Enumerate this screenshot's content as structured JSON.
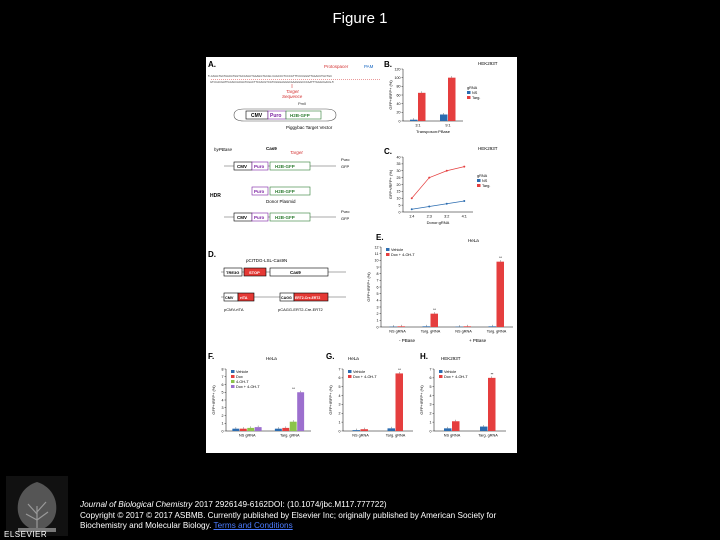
{
  "slide": {
    "title": "Figure 1"
  },
  "panels": {
    "A": {
      "label": "A.",
      "seq_top": "5'-CAGGTGCTAACGTGGTGCCAGCTGAAGGTGCAG CAGCCCTCCCGTTTCCCGGGTTAAACCTGCTGC",
      "seq_bottom": "GTCCACGATTGCACCACGGTCGACTTCCACGTCGTCGGGAGGGCAAAGGGCCCAATTTGGACGACG-5'",
      "protospacer": "Protospacer",
      "pam": "PAM",
      "target_sequence": "Target\nSequence",
      "cmv": "CMV",
      "puro": "Puro",
      "h2b_gfp": "H2B-GFP",
      "piggybac_vector": "Piggybac Target Vector",
      "hypbase": "hyPBase",
      "cas9": "Cas9",
      "target": "Target",
      "hdr": "HDR",
      "donor": "Donor Plasmid",
      "puro_r": "Puro",
      "gfp_plus": "GFP"
    },
    "B": {
      "label": "B.",
      "cell": "HEK293T",
      "legend_title": "gRNA",
      "ylabel": "GFP+/RFP+ (%)",
      "xlabel": "Transposon:PBase"
    },
    "C": {
      "label": "C.",
      "cell": "HEK293T",
      "legend_title": "gRNA",
      "ylabel": "GFP+/RFP+ (%)",
      "xlabel": "Donor:gRNA"
    },
    "D": {
      "label": "D.",
      "construct1": "pCITDG-LSL-Cas9N",
      "construct2a": "pCMV-rtTA",
      "construct2b": "pCAGG-ERT2-Cre-ERT2",
      "tre": "TRE3G",
      "stop": "STOP",
      "cas9": "Cas9",
      "cmv": "CMV",
      "rtta": "rtTA",
      "cagg": "CAGG",
      "ert": "ERT2-Cre-ERT2"
    },
    "E": {
      "label": "E.",
      "cell": "HeLa",
      "ylabel": "GFP+/RFP+ (%)",
      "group_labels": [
        "- PBase",
        "+ PBase"
      ]
    },
    "F": {
      "label": "F.",
      "cell": "HeLa",
      "ylabel": "GFP+/RFP+ (%)"
    },
    "G": {
      "label": "G.",
      "cell": "HeLa",
      "ylabel": "GFP+/RFP+ (%)"
    },
    "H": {
      "label": "H.",
      "cell": "HEK293T",
      "ylabel": "GFP+/RFP+ (%)"
    }
  },
  "chart_data": [
    {
      "panel": "B",
      "type": "bar",
      "categories": [
        "3:1",
        "9:1"
      ],
      "series": [
        {
          "name": "NS",
          "values": [
            3,
            15
          ],
          "color": "#2b6cb0"
        },
        {
          "name": "Targ.",
          "values": [
            65,
            100
          ],
          "color": "#e53e3e"
        }
      ],
      "ylim": [
        0,
        120
      ],
      "yticks": [
        0,
        20,
        40,
        60,
        80,
        100,
        120
      ],
      "ylabel": "GFP+/RFP+ (%)",
      "xlabel": "Transposon:PBase"
    },
    {
      "panel": "C",
      "type": "line",
      "categories": [
        "1:4",
        "2:3",
        "3:2",
        "4:1"
      ],
      "series": [
        {
          "name": "NS",
          "values": [
            2,
            4,
            6,
            8
          ],
          "color": "#2b6cb0"
        },
        {
          "name": "Targ.",
          "values": [
            10,
            25,
            30,
            33
          ],
          "color": "#e53e3e"
        }
      ],
      "ylim": [
        0,
        40
      ],
      "yticks": [
        0,
        5,
        10,
        15,
        20,
        25,
        30,
        35,
        40
      ],
      "ylabel": "GFP+/RFP+ (%)",
      "xlabel": "Donor:gRNA"
    },
    {
      "panel": "E",
      "type": "bar",
      "categories": [
        "NS gRNA",
        "Targ. gRNA",
        "NS gRNA",
        "Targ. gRNA"
      ],
      "series": [
        {
          "name": "Vehicle",
          "values": [
            0.05,
            0.1,
            0.05,
            0.1
          ],
          "color": "#2b6cb0"
        },
        {
          "name": "Dox + 4-OH-T",
          "values": [
            0.1,
            2.0,
            0.1,
            9.8
          ],
          "color": "#e53e3e"
        }
      ],
      "ylim": [
        0,
        12
      ],
      "yticks": [
        0,
        1,
        2,
        3,
        4,
        5,
        6,
        7,
        8,
        9,
        10,
        11,
        12
      ],
      "significance": [
        "",
        "**",
        "",
        "**"
      ],
      "ylabel": "GFP+/RFP+ (%)"
    },
    {
      "panel": "F",
      "type": "bar",
      "categories": [
        "NS gRNA",
        "Targ. gRNA"
      ],
      "series": [
        {
          "name": "Vehicle",
          "values": [
            0.3,
            0.3
          ],
          "color": "#2b6cb0"
        },
        {
          "name": "Dox",
          "values": [
            0.3,
            0.4
          ],
          "color": "#e53e3e"
        },
        {
          "name": "4-OH-T",
          "values": [
            0.4,
            1.2
          ],
          "color": "#8bc34a"
        },
        {
          "name": "Dox + 4-OH-T",
          "values": [
            0.5,
            5.0
          ],
          "color": "#9c6fce"
        }
      ],
      "ylim": [
        0,
        8
      ],
      "yticks": [
        0,
        1,
        2,
        3,
        4,
        5,
        6,
        7,
        8
      ],
      "significance": [
        "",
        "**"
      ],
      "ylabel": "GFP+/RFP+ (%)"
    },
    {
      "panel": "G",
      "type": "bar",
      "categories": [
        "NS gRNA",
        "Targ. gRNA"
      ],
      "series": [
        {
          "name": "Vehicle",
          "values": [
            0.1,
            0.3
          ],
          "color": "#2b6cb0"
        },
        {
          "name": "Dox + 4-OH-T",
          "values": [
            0.2,
            6.5
          ],
          "color": "#e53e3e"
        }
      ],
      "ylim": [
        0,
        7
      ],
      "yticks": [
        0,
        1,
        2,
        3,
        4,
        5,
        6,
        7
      ],
      "significance": [
        "",
        "**"
      ],
      "ylabel": "GFP+/RFP+ (%)"
    },
    {
      "panel": "H",
      "type": "bar",
      "categories": [
        "NS gRNA",
        "Targ. gRNA"
      ],
      "series": [
        {
          "name": "Vehicle",
          "values": [
            0.3,
            0.5
          ],
          "color": "#2b6cb0"
        },
        {
          "name": "Dox + 4-OH-T",
          "values": [
            1.1,
            6.0
          ],
          "color": "#e53e3e"
        }
      ],
      "ylim": [
        0,
        7
      ],
      "yticks": [
        0,
        1,
        2,
        3,
        4,
        5,
        6,
        7
      ],
      "significance": [
        "",
        "**"
      ],
      "ylabel": "GFP+/RFP+ (%)"
    }
  ],
  "footer": {
    "journal": "Journal of Biological Chemistry",
    "citation_rest": " 2017 2926149-6162DOI: (10.1074/jbc.M117.777722)",
    "copyright": "Copyright © 2017 © 2017 ASBMB. Currently published by Elsevier Inc; originally published by American Society for Biochemistry and Molecular Biology.",
    "terms_link": "Terms and Conditions",
    "logo_text": "ELSEVIER"
  }
}
